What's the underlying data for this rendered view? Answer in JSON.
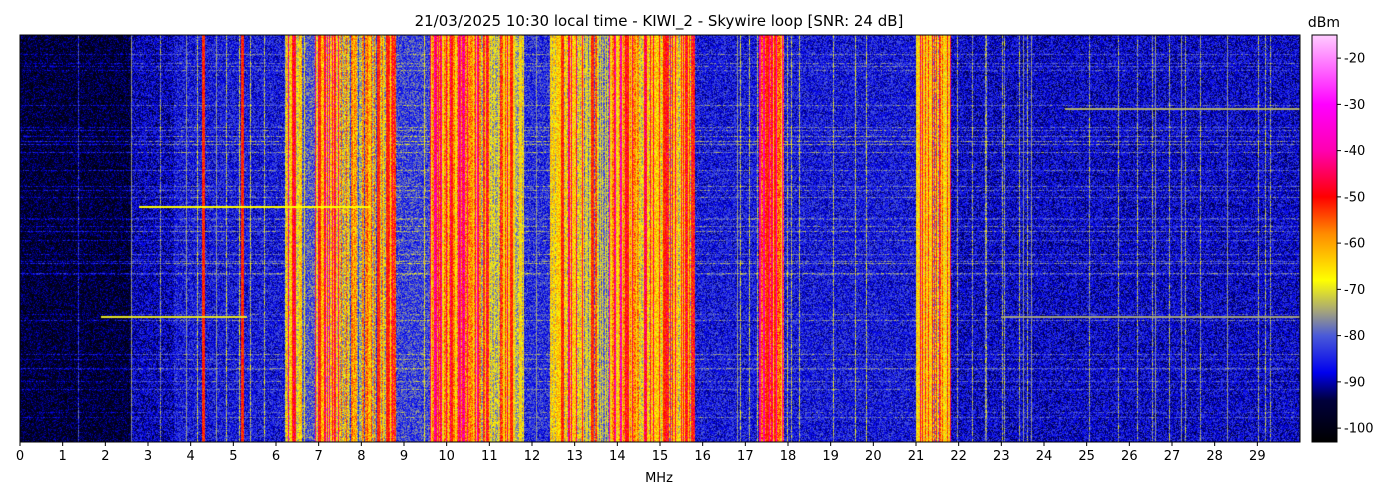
{
  "chart_data": {
    "type": "heatmap",
    "title": "21/03/2025 10:30 local time - KIWI_2 - Skywire loop [SNR: 24 dB]",
    "xlabel": "MHz",
    "ylabel": "",
    "xlim": [
      0,
      30
    ],
    "x_ticks": [
      "0",
      "1",
      "2",
      "3",
      "4",
      "5",
      "6",
      "7",
      "8",
      "9",
      "10",
      "11",
      "12",
      "13",
      "14",
      "15",
      "16",
      "17",
      "18",
      "19",
      "20",
      "21",
      "22",
      "23",
      "24",
      "25",
      "26",
      "27",
      "28",
      "29"
    ],
    "colorbar": {
      "label": "dBm",
      "range": [
        -103,
        -15
      ],
      "ticks": [
        "-20",
        "-30",
        "-40",
        "-50",
        "-60",
        "-70",
        "-80",
        "-90",
        "-100"
      ],
      "tick_values": [
        -20,
        -30,
        -40,
        -50,
        -60,
        -70,
        -80,
        -90,
        -100
      ],
      "colormap": [
        {
          "value": -103,
          "color": "#000000"
        },
        {
          "value": -94,
          "color": "#00003c"
        },
        {
          "value": -88,
          "color": "#0000ee"
        },
        {
          "value": -80,
          "color": "#4a5ad8"
        },
        {
          "value": -75,
          "color": "#a0a080"
        },
        {
          "value": -68,
          "color": "#ffff00"
        },
        {
          "value": -58,
          "color": "#ff8c00"
        },
        {
          "value": -50,
          "color": "#ff0000"
        },
        {
          "value": -40,
          "color": "#ff00b0"
        },
        {
          "value": -30,
          "color": "#ff00ff"
        },
        {
          "value": -15,
          "color": "#ffccff"
        }
      ]
    },
    "signal_bands_mhz": [
      {
        "from": 0.0,
        "to": 2.6,
        "level_dbm": -96
      },
      {
        "from": 2.6,
        "to": 3.6,
        "level_dbm": -89
      },
      {
        "from": 3.6,
        "to": 5.5,
        "level_dbm": -86
      },
      {
        "from": 5.5,
        "to": 6.2,
        "level_dbm": -86
      },
      {
        "from": 6.2,
        "to": 6.6,
        "level_dbm": -63
      },
      {
        "from": 6.6,
        "to": 6.9,
        "level_dbm": -80
      },
      {
        "from": 6.9,
        "to": 7.5,
        "level_dbm": -62
      },
      {
        "from": 7.5,
        "to": 8.5,
        "level_dbm": -74
      },
      {
        "from": 8.5,
        "to": 8.8,
        "level_dbm": -66
      },
      {
        "from": 8.8,
        "to": 9.6,
        "level_dbm": -82
      },
      {
        "from": 9.6,
        "to": 10.8,
        "level_dbm": -58
      },
      {
        "from": 10.8,
        "to": 11.8,
        "level_dbm": -66
      },
      {
        "from": 11.8,
        "to": 12.4,
        "level_dbm": -84
      },
      {
        "from": 12.4,
        "to": 13.2,
        "level_dbm": -64
      },
      {
        "from": 13.2,
        "to": 13.8,
        "level_dbm": -70
      },
      {
        "from": 13.8,
        "to": 14.5,
        "level_dbm": -58
      },
      {
        "from": 14.5,
        "to": 15.8,
        "level_dbm": -64
      },
      {
        "from": 15.8,
        "to": 17.3,
        "level_dbm": -86
      },
      {
        "from": 17.3,
        "to": 17.9,
        "level_dbm": -56
      },
      {
        "from": 17.9,
        "to": 21.0,
        "level_dbm": -86
      },
      {
        "from": 21.0,
        "to": 21.8,
        "level_dbm": -66
      },
      {
        "from": 21.8,
        "to": 30.0,
        "level_dbm": -88
      }
    ],
    "strong_carriers_mhz": [
      4.3,
      5.2,
      6.4,
      7.0,
      8.4,
      8.6,
      10.1,
      10.3,
      11.5,
      12.7,
      13.4,
      14.2,
      15.1,
      15.6,
      17.5,
      17.7
    ],
    "persistent_carriers_mhz": [
      2.6,
      3.9,
      4.6,
      7.2,
      7.3,
      11.6,
      12.1,
      13.6,
      14.7,
      15.3,
      16.8,
      21.3,
      21.5,
      23.5,
      23.7,
      26.6,
      27.2,
      28.3
    ],
    "horizontal_lines": [
      {
        "row": 0.42,
        "from_mhz": 2.8,
        "to_mhz": 8.2,
        "level_dbm": -68
      },
      {
        "row": 0.69,
        "from_mhz": 1.9,
        "to_mhz": 5.3,
        "level_dbm": -70
      },
      {
        "row": 0.18,
        "from_mhz": 24.5,
        "to_mhz": 30.0,
        "level_dbm": -74
      },
      {
        "row": 0.69,
        "from_mhz": 23.0,
        "to_mhz": 30.0,
        "level_dbm": -75
      }
    ]
  }
}
